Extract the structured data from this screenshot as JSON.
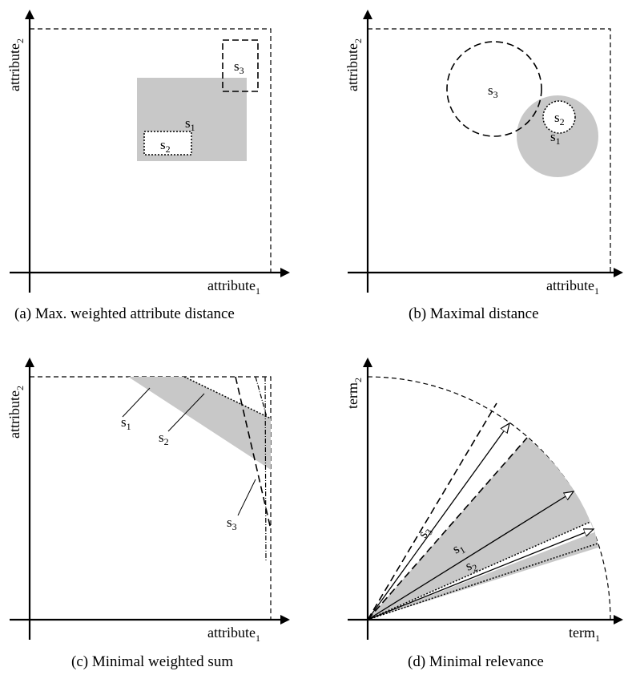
{
  "panels": {
    "a": {
      "caption": "(a) Max. weighted attribute distance",
      "xlabel": {
        "base": "attribute",
        "sub": "1"
      },
      "ylabel": {
        "base": "attribute",
        "sub": "2"
      },
      "s1": {
        "base": "s",
        "sub": "1"
      },
      "s2": {
        "base": "s",
        "sub": "2"
      },
      "s3": {
        "base": "s",
        "sub": "3"
      }
    },
    "b": {
      "caption": "(b) Maximal distance",
      "xlabel": {
        "base": "attribute",
        "sub": "1"
      },
      "ylabel": {
        "base": "attribute",
        "sub": "2"
      },
      "s1": {
        "base": "s",
        "sub": "1"
      },
      "s2": {
        "base": "s",
        "sub": "2"
      },
      "s3": {
        "base": "s",
        "sub": "3"
      }
    },
    "c": {
      "caption": "(c) Minimal weighted sum",
      "xlabel": {
        "base": "attribute",
        "sub": "1"
      },
      "ylabel": {
        "base": "attribute",
        "sub": "2"
      },
      "s1": {
        "base": "s",
        "sub": "1"
      },
      "s2": {
        "base": "s",
        "sub": "2"
      },
      "s3": {
        "base": "s",
        "sub": "3"
      }
    },
    "d": {
      "caption": "(d) Minimal relevance",
      "xlabel": {
        "base": "term",
        "sub": "1"
      },
      "ylabel": {
        "base": "term",
        "sub": "2"
      },
      "s1": {
        "base": "s",
        "sub": "1"
      },
      "s2": {
        "base": "s",
        "sub": "2"
      },
      "s3": {
        "base": "s",
        "sub": "3"
      }
    }
  },
  "colors": {
    "region_fill": "#c8c8c8",
    "stroke": "#000000"
  }
}
